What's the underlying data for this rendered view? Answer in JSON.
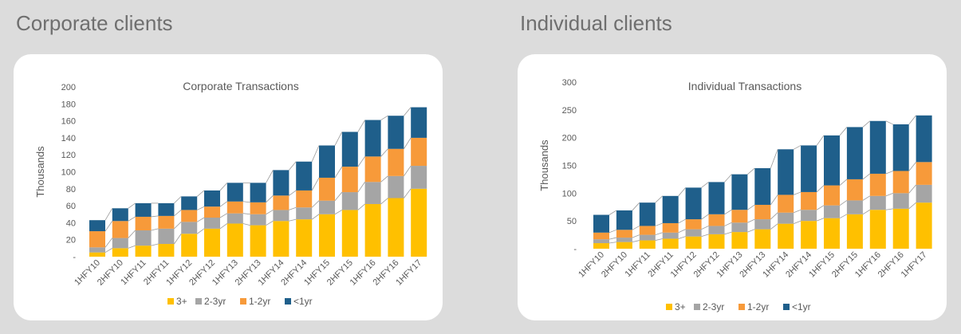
{
  "sections": {
    "left_title": "Corporate clients",
    "right_title": "Individual clients"
  },
  "colors": {
    "3+": "#ffc000",
    "2-3yr": "#a5a5a5",
    "1-2yr": "#f79a3a",
    "<1yr": "#1f5f8b",
    "background": "#dcdcdc",
    "card": "#ffffff"
  },
  "chart_data": [
    {
      "type": "bar",
      "stacked": true,
      "title": "Corporate Transactions",
      "xlabel": "",
      "ylabel": "Thousands",
      "ylim": [
        0,
        200
      ],
      "yticks": [
        "-",
        "20",
        "40",
        "60",
        "80",
        "100",
        "120",
        "140",
        "160",
        "180",
        "200"
      ],
      "legend_position": "bottom",
      "grid": false,
      "categories": [
        "1HFY10",
        "2HFY10",
        "1HFY11",
        "2HFY11",
        "1HFY12",
        "2HFY12",
        "1HFY13",
        "2HFY13",
        "1HFY14",
        "2HFY14",
        "1HFY15",
        "2HFY15",
        "1HFY16",
        "2HFY16",
        "1HFY17"
      ],
      "series": [
        {
          "name": "3+",
          "color": "#ffc000",
          "values": [
            5,
            10,
            13,
            15,
            27,
            33,
            39,
            37,
            42,
            44,
            50,
            55,
            62,
            69,
            80
          ]
        },
        {
          "name": "2-3yr",
          "color": "#a5a5a5",
          "values": [
            6,
            12,
            18,
            18,
            14,
            13,
            12,
            13,
            13,
            14,
            16,
            21,
            26,
            26,
            27
          ]
        },
        {
          "name": "1-2yr",
          "color": "#f79a3a",
          "values": [
            19,
            20,
            16,
            15,
            14,
            13,
            14,
            14,
            17,
            20,
            27,
            30,
            30,
            32,
            33
          ]
        },
        {
          "name": "<1yr",
          "color": "#1f5f8b",
          "values": [
            13,
            15,
            16,
            15,
            16,
            19,
            22,
            23,
            30,
            34,
            38,
            41,
            43,
            39,
            36
          ]
        }
      ]
    },
    {
      "type": "bar",
      "stacked": true,
      "title": "Individual Transactions",
      "xlabel": "",
      "ylabel": "Thousands",
      "ylim": [
        0,
        300
      ],
      "yticks": [
        "-",
        "50",
        "100",
        "150",
        "200",
        "250",
        "300"
      ],
      "legend_position": "bottom",
      "grid": false,
      "categories": [
        "1HFY10",
        "2HFY10",
        "1HFY11",
        "2HFY11",
        "1HFY12",
        "2HFY12",
        "1HFY13",
        "2HFY13",
        "1HFY14",
        "2HFY14",
        "1HFY15",
        "2HFY15",
        "1HFY16",
        "2HFY16",
        "1HFY17"
      ],
      "series": [
        {
          "name": "3+",
          "color": "#ffc000",
          "values": [
            10,
            12,
            15,
            18,
            22,
            26,
            30,
            35,
            45,
            50,
            55,
            62,
            70,
            72,
            83
          ]
        },
        {
          "name": "2-3yr",
          "color": "#a5a5a5",
          "values": [
            7,
            8,
            10,
            11,
            13,
            15,
            17,
            18,
            20,
            20,
            23,
            25,
            25,
            28,
            32
          ]
        },
        {
          "name": "1-2yr",
          "color": "#f79a3a",
          "values": [
            12,
            14,
            16,
            17,
            18,
            21,
            23,
            26,
            32,
            32,
            36,
            38,
            40,
            40,
            41
          ]
        },
        {
          "name": "<1yr",
          "color": "#1f5f8b",
          "values": [
            32,
            35,
            42,
            49,
            57,
            58,
            64,
            66,
            82,
            84,
            90,
            94,
            95,
            84,
            84
          ]
        }
      ]
    }
  ]
}
